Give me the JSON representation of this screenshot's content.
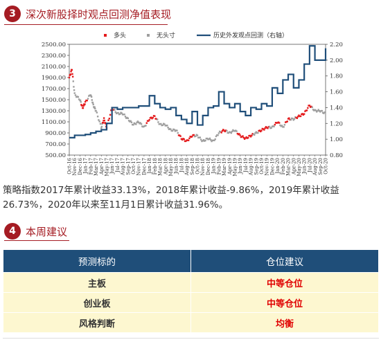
{
  "section3": {
    "num": "3",
    "title": "深次新股择时观点回测净值表现"
  },
  "section4": {
    "num": "4",
    "title": "本周建议"
  },
  "summary": "策略指数2017年累计收益33.13%，2018年累计收益-9.86%，2019年累计收益26.73%，2020年以来至11月1日累计收益31.96%。",
  "chart_data": {
    "type": "line",
    "legend": [
      {
        "name": "多头",
        "color": "#e41a1c",
        "style": "dot"
      },
      {
        "name": "无头寸",
        "color": "#9e9e9e",
        "style": "dot"
      },
      {
        "name": "历史外发观点回测（右轴）",
        "color": "#1f4e79",
        "style": "line"
      }
    ],
    "legend_position": "top",
    "y_left": {
      "ticks": [
        "2500.00",
        "2300.00",
        "2100.00",
        "1900.00",
        "1700.00",
        "1500.00",
        "1300.00",
        "1100.00",
        "900.00",
        "700.00",
        "500.00"
      ],
      "range": [
        500,
        2500
      ]
    },
    "y_right": {
      "ticks": [
        "2.20",
        "2.00",
        "1.80",
        "1.60",
        "1.40",
        "1.20",
        "1.00",
        "0.80"
      ],
      "range": [
        0.8,
        2.2
      ]
    },
    "x_ticks": [
      "Oct-16",
      "Nov-16",
      "Dec-16",
      "Jan-17",
      "Feb-17",
      "Mar-17",
      "Apr-17",
      "May-17",
      "Jun-17",
      "Jul-17",
      "Aug-17",
      "Sep-17",
      "Oct-17",
      "Nov-17",
      "Dec-17",
      "Jan-18",
      "Feb-18",
      "Mar-18",
      "Apr-18",
      "May-18",
      "Jun-18",
      "Jul-18",
      "Aug-18",
      "Sep-18",
      "Oct-18",
      "Nov-18",
      "Dec-18",
      "Jan-19",
      "Feb-19",
      "Mar-19",
      "Apr-19",
      "May-19",
      "Jun-19",
      "Jul-19",
      "Aug-19",
      "Sep-19",
      "Oct-19",
      "Nov-19",
      "Dec-19",
      "Jan-20",
      "Feb-20",
      "Mar-20",
      "Apr-20",
      "May-20",
      "Jun-20",
      "Jul-20",
      "Aug-20",
      "Sep-20",
      "Oct-20"
    ],
    "index_series": {
      "name": "指数",
      "points": [
        [
          0,
          1900,
          "L"
        ],
        [
          0.5,
          2050,
          "L"
        ],
        [
          1,
          1600,
          "N"
        ],
        [
          2,
          1500,
          "N"
        ],
        [
          2.5,
          1350,
          "L"
        ],
        [
          3,
          1450,
          "L"
        ],
        [
          4,
          1600,
          "N"
        ],
        [
          4.5,
          1400,
          "N"
        ],
        [
          5,
          1300,
          "N"
        ],
        [
          6,
          1000,
          "N"
        ],
        [
          6.5,
          1150,
          "L"
        ],
        [
          7,
          1000,
          "L"
        ],
        [
          8,
          1350,
          "L"
        ],
        [
          9,
          1250,
          "N"
        ],
        [
          10,
          1250,
          "N"
        ],
        [
          11,
          1150,
          "N"
        ],
        [
          12,
          1050,
          "N"
        ],
        [
          13,
          1100,
          "N"
        ],
        [
          14,
          1000,
          "N"
        ],
        [
          15,
          1150,
          "L"
        ],
        [
          16,
          1200,
          "L"
        ],
        [
          17,
          1050,
          "N"
        ],
        [
          18,
          1050,
          "N"
        ],
        [
          19,
          950,
          "N"
        ],
        [
          20,
          950,
          "N"
        ],
        [
          21,
          800,
          "L"
        ],
        [
          22,
          750,
          "L"
        ],
        [
          23,
          850,
          "L"
        ],
        [
          24,
          850,
          "N"
        ],
        [
          25,
          750,
          "N"
        ],
        [
          26,
          800,
          "N"
        ],
        [
          27,
          750,
          "N"
        ],
        [
          28,
          900,
          "N"
        ],
        [
          29,
          950,
          "L"
        ],
        [
          30,
          900,
          "N"
        ],
        [
          31,
          950,
          "N"
        ],
        [
          32,
          850,
          "L"
        ],
        [
          33,
          800,
          "L"
        ],
        [
          34,
          850,
          "L"
        ],
        [
          35,
          900,
          "N"
        ],
        [
          36,
          950,
          "L"
        ],
        [
          37,
          1000,
          "L"
        ],
        [
          38,
          1000,
          "N"
        ],
        [
          39,
          1100,
          "L"
        ],
        [
          40,
          1000,
          "N"
        ],
        [
          41,
          1150,
          "L"
        ],
        [
          42,
          1150,
          "N"
        ],
        [
          43,
          1200,
          "L"
        ],
        [
          44,
          1250,
          "L"
        ],
        [
          45,
          1400,
          "L"
        ],
        [
          46,
          1300,
          "N"
        ],
        [
          47,
          1300,
          "N"
        ],
        [
          48,
          1250,
          "N"
        ]
      ]
    },
    "backtest_series": {
      "name": "历史外发观点回测（右轴）",
      "points": [
        [
          0,
          1.02
        ],
        [
          1,
          1.05
        ],
        [
          2,
          1.05
        ],
        [
          3,
          1.06
        ],
        [
          4,
          1.08
        ],
        [
          5,
          1.1
        ],
        [
          6,
          1.12
        ],
        [
          7,
          1.2
        ],
        [
          8,
          1.4
        ],
        [
          9,
          1.38
        ],
        [
          10,
          1.4
        ],
        [
          11,
          1.4
        ],
        [
          12,
          1.4
        ],
        [
          13,
          1.42
        ],
        [
          14,
          1.42
        ],
        [
          15,
          1.55
        ],
        [
          16,
          1.45
        ],
        [
          17,
          1.4
        ],
        [
          18,
          1.38
        ],
        [
          19,
          1.4
        ],
        [
          20,
          1.3
        ],
        [
          21,
          1.25
        ],
        [
          22,
          1.2
        ],
        [
          23,
          1.35
        ],
        [
          24,
          1.18
        ],
        [
          25,
          1.3
        ],
        [
          26,
          1.4
        ],
        [
          27,
          1.42
        ],
        [
          28,
          1.6
        ],
        [
          29,
          1.45
        ],
        [
          30,
          1.4
        ],
        [
          31,
          1.45
        ],
        [
          32,
          1.35
        ],
        [
          33,
          1.3
        ],
        [
          34,
          1.4
        ],
        [
          35,
          1.38
        ],
        [
          36,
          1.45
        ],
        [
          37,
          1.42
        ],
        [
          38,
          1.65
        ],
        [
          39,
          1.58
        ],
        [
          40,
          1.75
        ],
        [
          41,
          1.82
        ],
        [
          42,
          1.65
        ],
        [
          43,
          1.75
        ],
        [
          44,
          1.95
        ],
        [
          45,
          2.18
        ],
        [
          46,
          2.0
        ],
        [
          47,
          2.0
        ],
        [
          48,
          2.15
        ]
      ]
    }
  },
  "table": {
    "headers": [
      "预测标的",
      "仓位建议"
    ],
    "rows": [
      {
        "target": "主板",
        "advice": "中等仓位"
      },
      {
        "target": "创业板",
        "advice": "中等仓位"
      },
      {
        "target": "风格判断",
        "advice": "均衡"
      }
    ]
  }
}
